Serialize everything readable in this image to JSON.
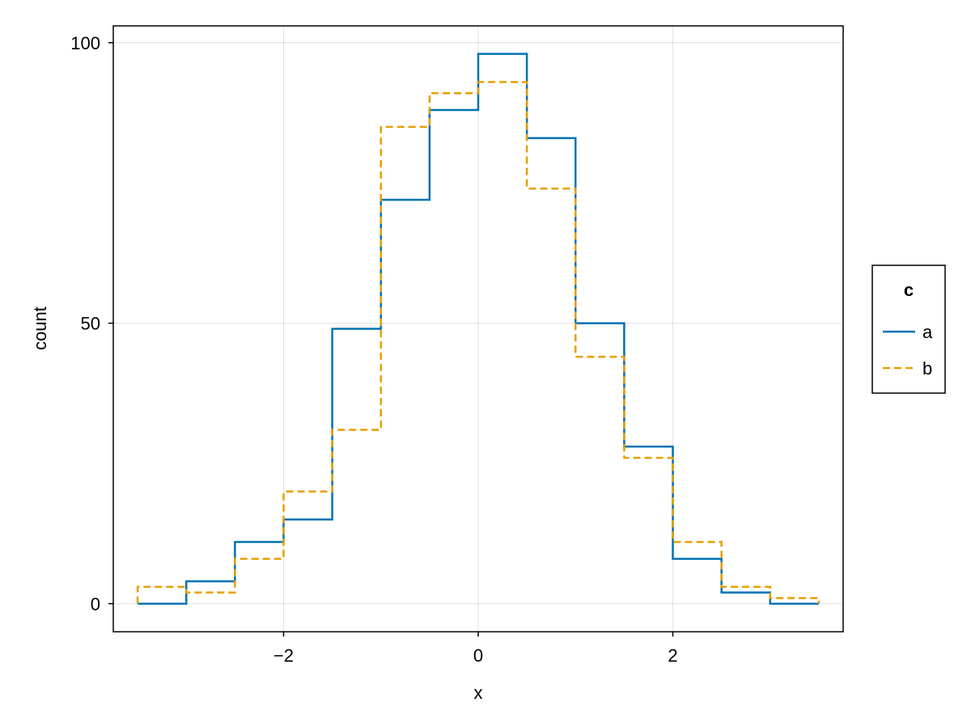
{
  "chart_data": {
    "type": "line",
    "title": "",
    "xlabel": "x",
    "ylabel": "count",
    "xlim": [
      -3.75,
      3.75
    ],
    "ylim": [
      -5,
      103
    ],
    "xticks": [
      -2,
      0,
      2
    ],
    "xtick_labels": [
      "−2",
      "0",
      "2"
    ],
    "yticks": [
      0,
      50,
      100
    ],
    "ytick_labels": [
      "0",
      "50",
      "100"
    ],
    "grid": true,
    "step": "histogram-outline",
    "bin_edges": [
      -3.5,
      -3.0,
      -2.5,
      -2.0,
      -1.5,
      -1.0,
      -0.5,
      0.0,
      0.5,
      1.0,
      1.5,
      2.0,
      2.5,
      3.0,
      3.5
    ],
    "series": [
      {
        "name": "a",
        "color": "#0072B2",
        "dash": "solid",
        "values": [
          0,
          4,
          11,
          15,
          49,
          72,
          88,
          98,
          83,
          50,
          28,
          8,
          2,
          0
        ]
      },
      {
        "name": "b",
        "color": "#E69F00",
        "dash": "dashed",
        "values": [
          3,
          2,
          8,
          20,
          31,
          85,
          91,
          93,
          74,
          44,
          26,
          11,
          3,
          1
        ]
      }
    ],
    "legend": {
      "title": "c",
      "placement": "right"
    }
  }
}
